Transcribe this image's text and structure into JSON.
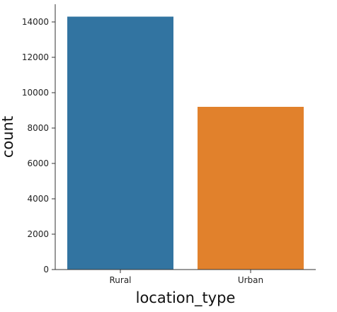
{
  "chart_data": {
    "type": "bar",
    "title": "",
    "xlabel": "location_type",
    "ylabel": "count",
    "categories": [
      "Rural",
      "Urban"
    ],
    "values": [
      14300,
      9200
    ],
    "colors": [
      "#3274a1",
      "#e1812c"
    ],
    "ylim": [
      0,
      15000
    ],
    "yticks": [
      0,
      2000,
      4000,
      6000,
      8000,
      10000,
      12000,
      14000
    ],
    "ytick_labels": [
      "0",
      "2000",
      "4000",
      "6000",
      "8000",
      "10000",
      "12000",
      "14000"
    ],
    "grid": false,
    "legend": "none"
  }
}
